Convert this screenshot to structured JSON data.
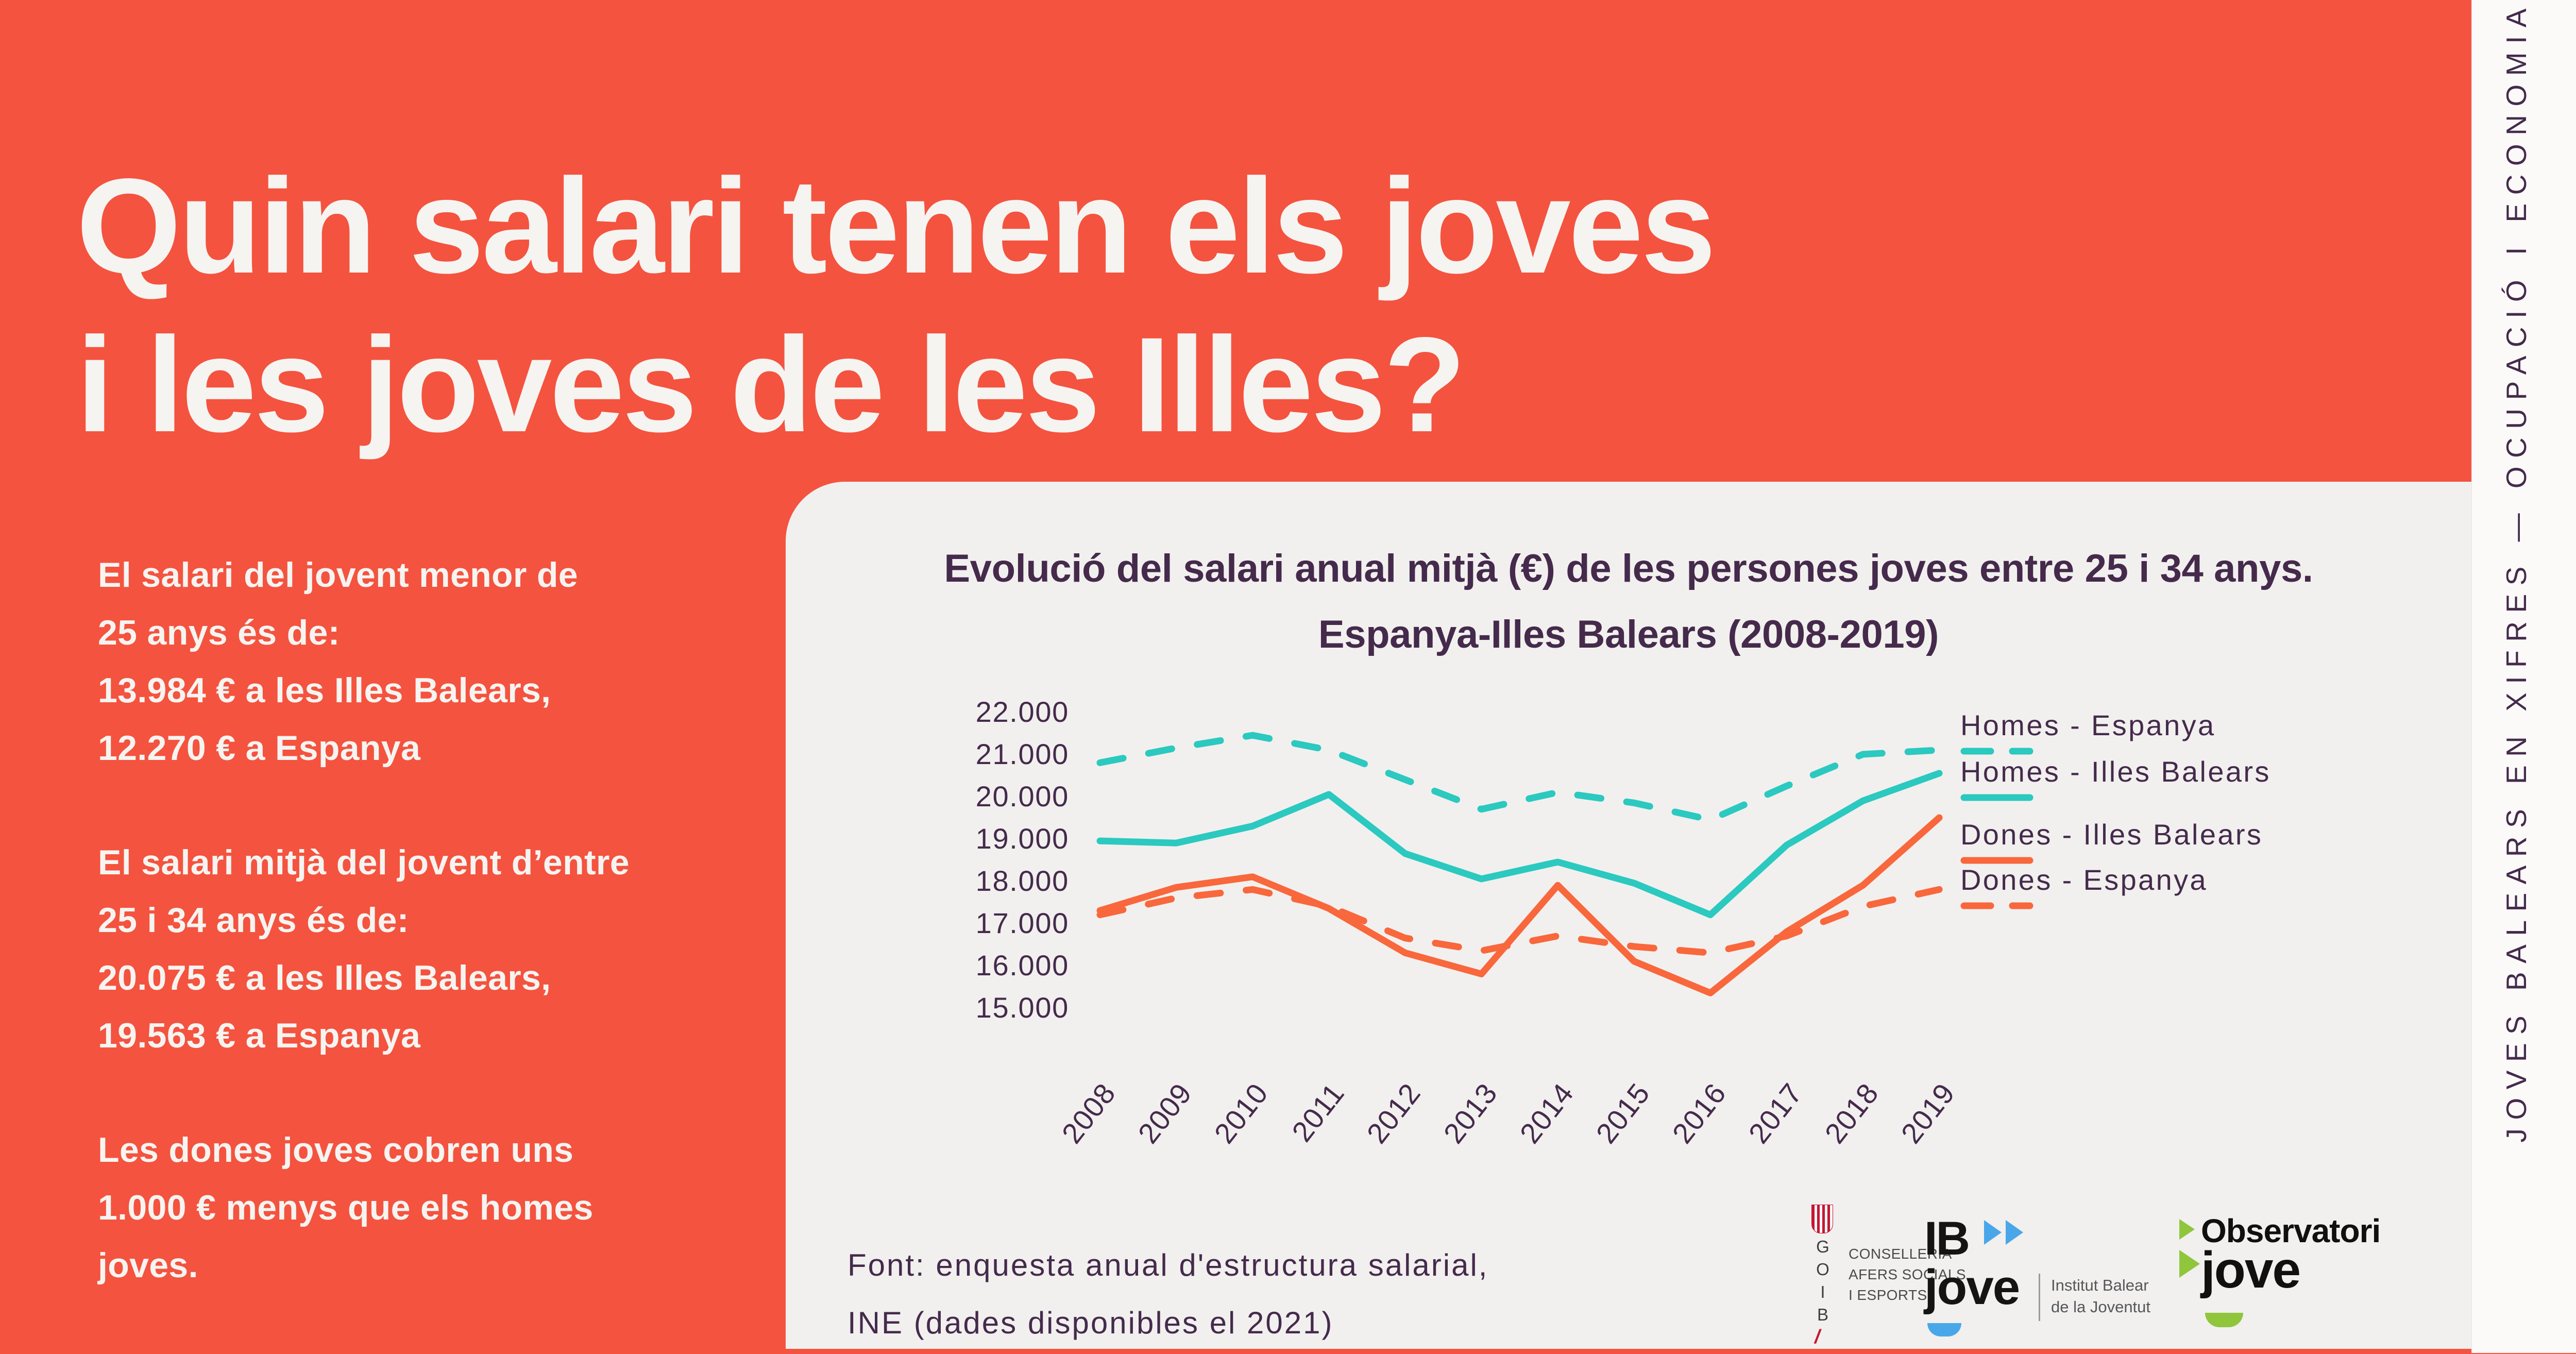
{
  "colors": {
    "background_red": "#F4533F",
    "panel_grey": "#F1F0EE",
    "strip_white": "#FBFAF9",
    "ink_purple": "#452A4C",
    "teal": "#2BC9BF",
    "orange": "#F9673C",
    "goib_red": "#C51632",
    "ibjove_blue": "#49A7E9",
    "observatori_green": "#8FC63C"
  },
  "title": {
    "text": "Quin salari tenen els joves\ni les joves de les Illes?"
  },
  "sidebar": {
    "p1": "El salari del jovent menor de\n25 anys és de:\n13.984 € a les Illes Balears,\n12.270 € a Espanya",
    "p2": "El salari mitjà del jovent d’entre\n25 i 34 anys és de:\n20.075 € a les Illes Balears,\n19.563 € a Espanya",
    "p3": "Les dones joves cobren uns\n1.000 € menys que els homes\njoves."
  },
  "vertical_banner": "JOVES BALEARS EN XIFRES — OCUPACIÓ I ECONOMIA",
  "chart_data": {
    "type": "line",
    "title": "Evolució del salari anual mitjà (€) de les persones joves entre 25 i 34 anys.\nEspanya-Illes Balears (2008-2019)",
    "xlabel": "",
    "ylabel": "",
    "categories": [
      "2008",
      "2009",
      "2010",
      "2011",
      "2012",
      "2013",
      "2014",
      "2015",
      "2016",
      "2017",
      "2018",
      "2019"
    ],
    "y_ticks": {
      "labels": [
        "22.000",
        "21.000",
        "20.000",
        "19.000",
        "18.000",
        "17.000",
        "16.000",
        "15.000"
      ],
      "values": [
        22000,
        21000,
        20000,
        19000,
        18000,
        17000,
        16000,
        15000
      ]
    },
    "ylim": [
      15000,
      22000
    ],
    "grid": false,
    "legend_position": "right",
    "series": [
      {
        "name": "Homes - Espanya",
        "color": "#2BC9BF",
        "style": "dashed",
        "values": [
          20800,
          21150,
          21450,
          21100,
          20400,
          19700,
          20100,
          19850,
          19450,
          20250,
          21000,
          21100
        ]
      },
      {
        "name": "Homes - Illes Balears",
        "color": "#2BC9BF",
        "style": "solid",
        "values": [
          18950,
          18900,
          19300,
          20050,
          18650,
          18050,
          18450,
          17950,
          17200,
          18850,
          19900,
          20550
        ]
      },
      {
        "name": "Dones - Illes Balears",
        "color": "#F9673C",
        "style": "solid",
        "values": [
          17300,
          17850,
          18100,
          17350,
          16300,
          15800,
          17900,
          16100,
          15350,
          16800,
          17900,
          19500
        ]
      },
      {
        "name": "Dones - Espanya",
        "color": "#F9673C",
        "style": "dashed",
        "values": [
          17200,
          17600,
          17800,
          17400,
          16650,
          16350,
          16700,
          16450,
          16300,
          16700,
          17400,
          17800
        ]
      }
    ]
  },
  "footer": {
    "source": "Font: enquesta anual d'estructura salarial,\nINE (dades disponibles el 2021)"
  },
  "logos": {
    "goib": {
      "letters": "G\nO\nI\nB",
      "slash": "/",
      "dept": "CONSELLERIA\nAFERS SOCIALS\nI ESPORTS"
    },
    "ibjove": {
      "name_top": "IB",
      "name_bottom": "jove",
      "institute": "Institut Balear\nde la Joventut"
    },
    "observatori": {
      "line1": "Observatori",
      "line2": "jove"
    }
  },
  "icons": {
    "goib_shield_icon": "striped-shield",
    "ibjove_arrows_icon": "▶▶",
    "observatori_chevrons_icon": "▶▶",
    "smile_icon": "⌣"
  }
}
